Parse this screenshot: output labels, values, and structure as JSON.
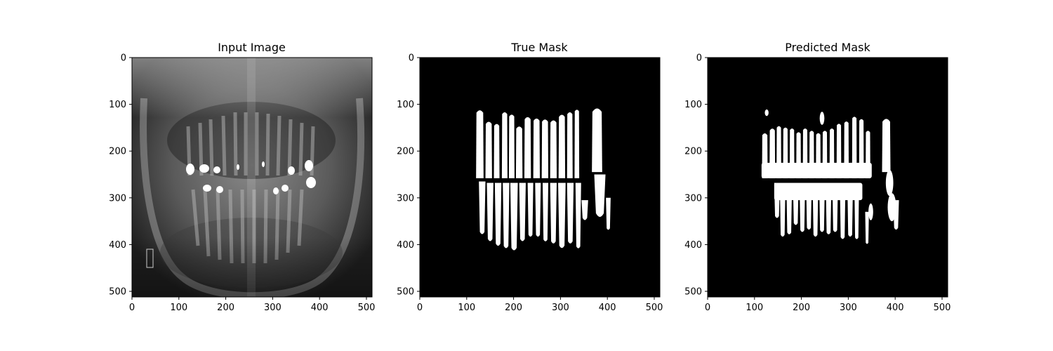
{
  "chart_data": [
    {
      "type": "heatmap",
      "title": "Input Image",
      "content": "grayscale",
      "x_ticks": [
        0,
        100,
        200,
        300,
        400,
        500
      ],
      "y_ticks": [
        0,
        100,
        200,
        300,
        400,
        500
      ],
      "xlim": [
        0,
        512
      ],
      "ylim": [
        512,
        0
      ]
    },
    {
      "type": "heatmap",
      "title": "True Mask",
      "content": "binary mask",
      "x_ticks": [
        0,
        100,
        200,
        300,
        400,
        500
      ],
      "y_ticks": [
        0,
        100,
        200,
        300,
        400,
        500
      ],
      "xlim": [
        0,
        512
      ],
      "ylim": [
        512,
        0
      ],
      "mask_color": "#ffffff",
      "background_color": "#000000",
      "upper_teeth": [
        {
          "x": 128,
          "top": 110,
          "bottom": 258,
          "w": 16
        },
        {
          "x": 147,
          "top": 135,
          "bottom": 258,
          "w": 14
        },
        {
          "x": 164,
          "top": 140,
          "bottom": 258,
          "w": 12
        },
        {
          "x": 181,
          "top": 115,
          "bottom": 258,
          "w": 12
        },
        {
          "x": 196,
          "top": 120,
          "bottom": 258,
          "w": 12
        },
        {
          "x": 212,
          "top": 145,
          "bottom": 258,
          "w": 14
        },
        {
          "x": 230,
          "top": 125,
          "bottom": 258,
          "w": 14
        },
        {
          "x": 249,
          "top": 128,
          "bottom": 258,
          "w": 14
        },
        {
          "x": 267,
          "top": 130,
          "bottom": 258,
          "w": 14
        },
        {
          "x": 285,
          "top": 132,
          "bottom": 258,
          "w": 14
        },
        {
          "x": 303,
          "top": 120,
          "bottom": 258,
          "w": 14
        },
        {
          "x": 320,
          "top": 115,
          "bottom": 258,
          "w": 12
        },
        {
          "x": 335,
          "top": 110,
          "bottom": 258,
          "w": 10
        },
        {
          "x": 378,
          "top": 105,
          "bottom": 245,
          "w": 22
        }
      ],
      "lower_teeth": [
        {
          "x": 133,
          "top": 265,
          "bottom": 380,
          "w": 14
        },
        {
          "x": 150,
          "top": 268,
          "bottom": 395,
          "w": 14
        },
        {
          "x": 167,
          "top": 268,
          "bottom": 405,
          "w": 14
        },
        {
          "x": 184,
          "top": 268,
          "bottom": 410,
          "w": 14
        },
        {
          "x": 201,
          "top": 268,
          "bottom": 415,
          "w": 16
        },
        {
          "x": 219,
          "top": 268,
          "bottom": 395,
          "w": 14
        },
        {
          "x": 236,
          "top": 268,
          "bottom": 385,
          "w": 12
        },
        {
          "x": 252,
          "top": 268,
          "bottom": 385,
          "w": 12
        },
        {
          "x": 268,
          "top": 268,
          "bottom": 395,
          "w": 12
        },
        {
          "x": 285,
          "top": 268,
          "bottom": 400,
          "w": 14
        },
        {
          "x": 303,
          "top": 268,
          "bottom": 410,
          "w": 16
        },
        {
          "x": 321,
          "top": 268,
          "bottom": 400,
          "w": 14
        },
        {
          "x": 338,
          "top": 268,
          "bottom": 410,
          "w": 12
        },
        {
          "x": 352,
          "top": 305,
          "bottom": 350,
          "w": 14
        },
        {
          "x": 384,
          "top": 250,
          "bottom": 345,
          "w": 24
        },
        {
          "x": 402,
          "top": 300,
          "bottom": 370,
          "w": 10
        }
      ]
    },
    {
      "type": "heatmap",
      "title": "Predicted Mask",
      "content": "binary mask",
      "x_ticks": [
        0,
        100,
        200,
        300,
        400,
        500
      ],
      "y_ticks": [
        0,
        100,
        200,
        300,
        400,
        500
      ],
      "xlim": [
        0,
        512
      ],
      "ylim": [
        512,
        0
      ],
      "mask_color": "#ffffff",
      "background_color": "#000000",
      "upper_band": {
        "x0": 115,
        "x1": 350,
        "top": 225,
        "bottom": 258
      },
      "upper_teeth": [
        {
          "x": 122,
          "top": 160,
          "bottom": 258,
          "w": 12
        },
        {
          "x": 138,
          "top": 150,
          "bottom": 258,
          "w": 12
        },
        {
          "x": 152,
          "top": 145,
          "bottom": 258,
          "w": 10
        },
        {
          "x": 166,
          "top": 148,
          "bottom": 258,
          "w": 10
        },
        {
          "x": 180,
          "top": 150,
          "bottom": 258,
          "w": 10
        },
        {
          "x": 194,
          "top": 158,
          "bottom": 258,
          "w": 10
        },
        {
          "x": 208,
          "top": 150,
          "bottom": 258,
          "w": 10
        },
        {
          "x": 222,
          "top": 155,
          "bottom": 258,
          "w": 10
        },
        {
          "x": 236,
          "top": 160,
          "bottom": 258,
          "w": 10
        },
        {
          "x": 250,
          "top": 155,
          "bottom": 258,
          "w": 10
        },
        {
          "x": 265,
          "top": 150,
          "bottom": 258,
          "w": 10
        },
        {
          "x": 280,
          "top": 140,
          "bottom": 258,
          "w": 10
        },
        {
          "x": 296,
          "top": 135,
          "bottom": 258,
          "w": 10
        },
        {
          "x": 313,
          "top": 125,
          "bottom": 258,
          "w": 10
        },
        {
          "x": 328,
          "top": 130,
          "bottom": 258,
          "w": 10
        },
        {
          "x": 342,
          "top": 155,
          "bottom": 258,
          "w": 10
        },
        {
          "x": 381,
          "top": 128,
          "bottom": 245,
          "w": 18
        }
      ],
      "blobs": [
        {
          "x": 126,
          "y": 118,
          "rx": 4,
          "ry": 7
        },
        {
          "x": 244,
          "y": 130,
          "rx": 5,
          "ry": 14
        },
        {
          "x": 388,
          "y": 268,
          "rx": 8,
          "ry": 28
        },
        {
          "x": 393,
          "y": 320,
          "rx": 9,
          "ry": 30
        },
        {
          "x": 348,
          "y": 330,
          "rx": 5,
          "ry": 18
        }
      ],
      "lower_band": {
        "x0": 142,
        "x1": 330,
        "top": 268,
        "bottom": 305
      },
      "lower_teeth": [
        {
          "x": 148,
          "top": 268,
          "bottom": 345,
          "w": 12
        },
        {
          "x": 160,
          "top": 268,
          "bottom": 385,
          "w": 12
        },
        {
          "x": 174,
          "top": 268,
          "bottom": 380,
          "w": 12
        },
        {
          "x": 188,
          "top": 268,
          "bottom": 360,
          "w": 12
        },
        {
          "x": 202,
          "top": 268,
          "bottom": 375,
          "w": 12
        },
        {
          "x": 216,
          "top": 268,
          "bottom": 370,
          "w": 12
        },
        {
          "x": 230,
          "top": 268,
          "bottom": 385,
          "w": 12
        },
        {
          "x": 244,
          "top": 268,
          "bottom": 375,
          "w": 12
        },
        {
          "x": 258,
          "top": 268,
          "bottom": 380,
          "w": 12
        },
        {
          "x": 272,
          "top": 268,
          "bottom": 375,
          "w": 12
        },
        {
          "x": 288,
          "top": 268,
          "bottom": 390,
          "w": 12
        },
        {
          "x": 304,
          "top": 268,
          "bottom": 385,
          "w": 12
        },
        {
          "x": 318,
          "top": 268,
          "bottom": 390,
          "w": 10
        },
        {
          "x": 340,
          "top": 330,
          "bottom": 400,
          "w": 8
        },
        {
          "x": 402,
          "top": 305,
          "bottom": 370,
          "w": 12
        }
      ]
    }
  ]
}
